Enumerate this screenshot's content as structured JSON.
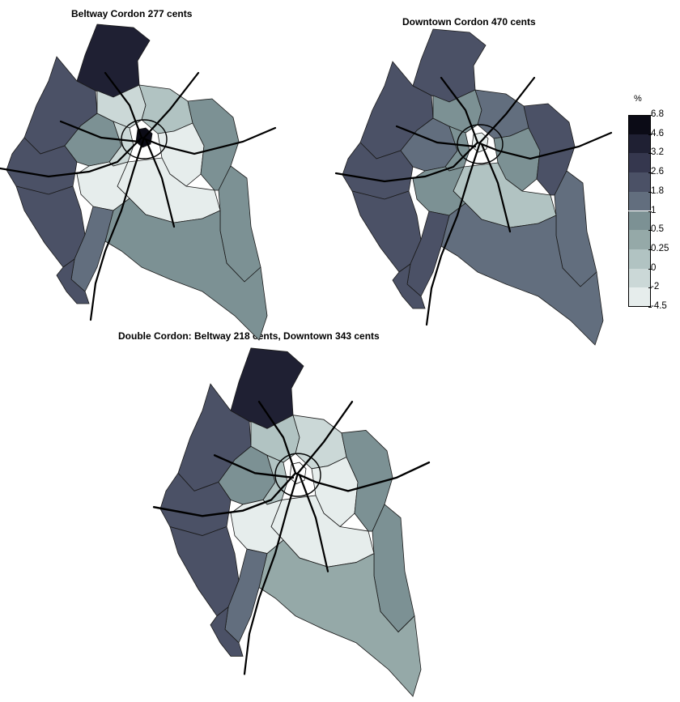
{
  "maps": [
    {
      "title": "Beltway Cordon 277 cents",
      "zones": {
        "north": 1,
        "northwest": 3,
        "west": 3,
        "southwest": 3,
        "west_inner": 5,
        "inner_nw": 8,
        "inner_ne": 7,
        "inner_w": 8,
        "inner_e": 9,
        "inner_s": 9,
        "inner_sw": 9,
        "east": 5,
        "southeast": 5,
        "south": 5,
        "south_small": 4,
        "sw_small": 3,
        "core": 0
      }
    },
    {
      "title": "Downtown Cordon 470 cents",
      "zones": {
        "north": 3,
        "northwest": 3,
        "west": 3,
        "southwest": 3,
        "west_inner": 4,
        "inner_nw": 5,
        "inner_ne": 4,
        "inner_w": 5,
        "inner_e": 5,
        "inner_s": 7,
        "inner_sw": 5,
        "east": 3,
        "southeast": 4,
        "south": 4,
        "south_small": 3,
        "sw_small": 3,
        "core": 9
      }
    },
    {
      "title": "Double Cordon: Beltway 218 cents, Downtown 343 cents",
      "zones": {
        "north": 1,
        "northwest": 3,
        "west": 3,
        "southwest": 3,
        "west_inner": 5,
        "inner_nw": 7,
        "inner_ne": 8,
        "inner_w": 7,
        "inner_e": 9,
        "inner_s": 9,
        "inner_sw": 9,
        "east": 5,
        "southeast": 5,
        "south": 6,
        "south_small": 4,
        "sw_small": 3,
        "core": 10
      }
    }
  ],
  "legend": {
    "unit": "%",
    "ticks": [
      "6.8",
      "4.6",
      "3.2",
      "2.6",
      "1.8",
      "1",
      "0.5",
      "0.25",
      "0",
      "-2",
      "-4.5"
    ],
    "colors": [
      "#0b0b16",
      "#1f2033",
      "#35374e",
      "#4b5166",
      "#626e7e",
      "#7c9194",
      "#95a9a8",
      "#b1c3c2",
      "#cbd8d7",
      "#e6edec",
      "#ffffff"
    ]
  }
}
